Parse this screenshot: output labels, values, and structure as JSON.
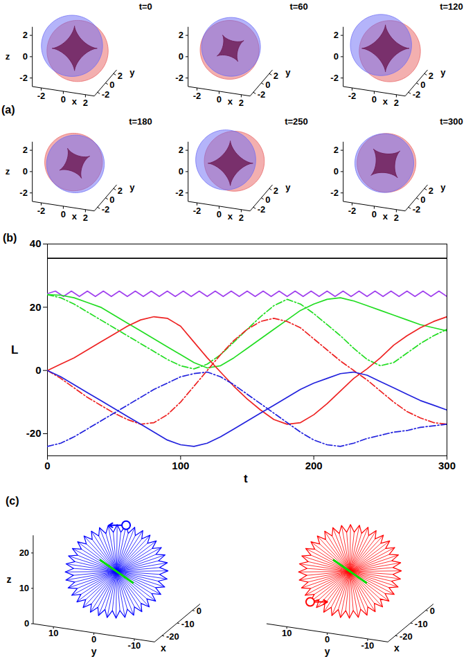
{
  "chart_data": [
    {
      "type": "isosurface",
      "panel": "(a)",
      "xlabel": "x",
      "ylabel": "y",
      "xlim": [
        -2.8,
        2.8
      ],
      "ylim": [
        -2.8,
        2.8
      ],
      "zlim": [
        -2.8,
        2.8
      ],
      "xticks": [
        -2,
        0,
        2
      ],
      "yticks": [
        -2,
        0,
        2
      ],
      "zticks": [
        -2,
        0,
        2
      ],
      "frames": [
        {
          "label": "t=0",
          "zlabel": "z",
          "components": [
            {
              "color": "#e8605f",
              "center": [
                0.35,
                -0.2,
                -0.1
              ],
              "radius": 2.6
            },
            {
              "color": "#6a6af5",
              "center": [
                -0.3,
                0.2,
                0.1
              ],
              "radius": 2.6
            }
          ],
          "core": {
            "color": "#70205a",
            "arm_length": 1.9,
            "angle_deg": 0
          }
        },
        {
          "label": "t=60",
          "components": [
            {
              "color": "#e8605f",
              "center": [
                -0.1,
                0.1,
                -0.2
              ],
              "radius": 2.5
            },
            {
              "color": "#6a6af5",
              "center": [
                0.1,
                -0.1,
                0.2
              ],
              "radius": 2.5
            }
          ],
          "core": {
            "color": "#70205a",
            "arm_length": 1.3,
            "angle_deg": 30
          }
        },
        {
          "label": "t=120",
          "components": [
            {
              "color": "#e8605f",
              "center": [
                0.4,
                0,
                -0.2
              ],
              "radius": 2.6
            },
            {
              "color": "#6a6af5",
              "center": [
                -0.4,
                0,
                0.25
              ],
              "radius": 2.6
            }
          ],
          "core": {
            "color": "#70205a",
            "arm_length": 2.0,
            "angle_deg": 0
          }
        },
        {
          "label": "t=180",
          "zlabel": "z",
          "components": [
            {
              "color": "#e8605f",
              "center": [
                -0.05,
                -0.1,
                0.15
              ],
              "radius": 2.45
            },
            {
              "color": "#6a6af5",
              "center": [
                0.05,
                0.1,
                -0.1
              ],
              "radius": 2.45
            }
          ],
          "core": {
            "color": "#70205a",
            "arm_length": 1.4,
            "angle_deg": 25
          }
        },
        {
          "label": "t=250",
          "components": [
            {
              "color": "#e8605f",
              "center": [
                0.4,
                -0.1,
                0.3
              ],
              "radius": 2.55
            },
            {
              "color": "#6a6af5",
              "center": [
                -0.45,
                0.1,
                0.2
              ],
              "radius": 2.55
            }
          ],
          "core": {
            "color": "#70205a",
            "arm_length": 1.9,
            "angle_deg": 0
          }
        },
        {
          "label": "t=300",
          "components": [
            {
              "color": "#e8605f",
              "center": [
                0.1,
                0,
                0.05
              ],
              "radius": 2.5
            },
            {
              "color": "#6a6af5",
              "center": [
                -0.1,
                0,
                0
              ],
              "radius": 2.5
            }
          ],
          "core": {
            "color": "#70205a",
            "arm_length": 1.6,
            "angle_deg": 40
          }
        }
      ]
    },
    {
      "type": "line",
      "panel": "(b)",
      "xlabel": "t",
      "ylabel": "L",
      "xlim": [
        0,
        300
      ],
      "ylim": [
        -27,
        40
      ],
      "xticks": [
        0,
        100,
        200,
        300
      ],
      "yticks": [
        -20,
        0,
        20,
        40
      ],
      "series": [
        {
          "color": "#000000",
          "line_style": "solid",
          "x": [
            0,
            300
          ],
          "values": [
            35.5,
            35.5
          ]
        },
        {
          "color": "#a040ee",
          "line_style": "solid",
          "x": [
            0,
            6,
            12,
            18,
            24,
            30,
            36,
            42,
            48,
            54,
            60,
            66,
            72,
            78,
            84,
            90,
            96,
            102,
            108,
            114,
            120,
            126,
            132,
            138,
            144,
            150,
            156,
            162,
            168,
            174,
            180,
            186,
            192,
            198,
            204,
            210,
            216,
            222,
            228,
            234,
            240,
            246,
            252,
            258,
            264,
            270,
            276,
            282,
            288,
            294,
            300
          ],
          "values": [
            24.3,
            25.1,
            23.4,
            25.1,
            23.4,
            25.1,
            23.4,
            25.1,
            23.4,
            25.1,
            23.4,
            25.1,
            23.4,
            25.1,
            23.4,
            25.1,
            23.4,
            25.1,
            23.4,
            25.1,
            23.4,
            25.1,
            23.4,
            25.1,
            23.4,
            25.1,
            23.4,
            25.1,
            23.4,
            25.1,
            23.4,
            25.1,
            23.4,
            25.1,
            23.4,
            25.1,
            23.4,
            25.1,
            23.4,
            25.1,
            23.4,
            25.1,
            23.4,
            25.1,
            23.4,
            25.1,
            23.4,
            25.1,
            23.4,
            25.1,
            23.4
          ]
        },
        {
          "color": "#22dd22",
          "line_style": "solid",
          "x": [
            0,
            10,
            20,
            30,
            40,
            50,
            60,
            70,
            80,
            90,
            100,
            110,
            120,
            130,
            140,
            150,
            160,
            170,
            180,
            190,
            200,
            210,
            220,
            230,
            240,
            250,
            260,
            270,
            280,
            290,
            300
          ],
          "values": [
            24,
            23.8,
            23,
            21.5,
            20,
            17.5,
            15,
            12.5,
            10,
            7.5,
            5,
            2.5,
            0.8,
            1.5,
            4,
            7,
            10,
            13,
            16,
            19,
            21,
            22.5,
            23,
            22,
            20.5,
            19,
            17.5,
            16,
            14.5,
            13.5,
            12.5
          ]
        },
        {
          "color": "#22dd22",
          "line_style": "dash-dot",
          "x": [
            0,
            10,
            20,
            30,
            40,
            50,
            60,
            70,
            80,
            90,
            100,
            110,
            120,
            130,
            140,
            150,
            160,
            170,
            180,
            190,
            200,
            210,
            220,
            230,
            240,
            250,
            260,
            270,
            280,
            290,
            300
          ],
          "values": [
            24,
            23,
            21,
            18.5,
            16,
            13.5,
            11,
            8.5,
            6,
            3.5,
            1.5,
            0.5,
            2,
            5,
            9,
            13,
            17,
            20.5,
            22.5,
            21,
            18,
            14.5,
            11,
            7,
            3.5,
            1.5,
            2.5,
            5.5,
            8.5,
            11,
            13
          ]
        },
        {
          "color": "#ee2222",
          "line_style": "solid",
          "x": [
            0,
            10,
            20,
            30,
            40,
            50,
            60,
            70,
            80,
            90,
            100,
            110,
            120,
            130,
            140,
            150,
            160,
            170,
            180,
            190,
            200,
            210,
            220,
            230,
            240,
            250,
            260,
            270,
            280,
            290,
            300
          ],
          "values": [
            0,
            2,
            4,
            6.5,
            9,
            11.5,
            14,
            16,
            17,
            16.5,
            14,
            9,
            4,
            -0.5,
            -5,
            -9,
            -12.5,
            -15.5,
            -17,
            -16.5,
            -14,
            -10.5,
            -6.5,
            -2.5,
            0.5,
            4,
            8,
            11,
            13.5,
            15.5,
            17
          ]
        },
        {
          "color": "#ee2222",
          "line_style": "dash-dot",
          "x": [
            0,
            10,
            20,
            30,
            40,
            50,
            60,
            70,
            80,
            90,
            100,
            110,
            120,
            130,
            140,
            150,
            160,
            170,
            180,
            190,
            200,
            210,
            220,
            230,
            240,
            250,
            260,
            270,
            280,
            290,
            300
          ],
          "values": [
            0,
            -2.5,
            -5.5,
            -8.5,
            -11,
            -13.5,
            -15.5,
            -17,
            -16.5,
            -14,
            -10,
            -5,
            0,
            5,
            9.5,
            13,
            15.5,
            16.5,
            15.5,
            13.5,
            10,
            6.5,
            3,
            0,
            -3,
            -6.5,
            -10,
            -13,
            -15,
            -16.5,
            -17
          ]
        },
        {
          "color": "#2222dd",
          "line_style": "solid",
          "x": [
            0,
            10,
            20,
            30,
            40,
            50,
            60,
            70,
            80,
            90,
            100,
            110,
            120,
            130,
            140,
            150,
            160,
            170,
            180,
            190,
            200,
            210,
            220,
            230,
            240,
            250,
            260,
            270,
            280,
            290,
            300
          ],
          "values": [
            0,
            -2,
            -4.5,
            -7,
            -9.5,
            -12,
            -14.5,
            -17,
            -19.5,
            -22,
            -23.5,
            -24,
            -23,
            -21,
            -18.5,
            -16,
            -13.5,
            -11,
            -8.5,
            -6,
            -4,
            -2.5,
            -1,
            -0.5,
            -1.5,
            -3.5,
            -5.5,
            -7.5,
            -9.5,
            -11,
            -12.5
          ]
        },
        {
          "color": "#2222dd",
          "line_style": "dash-dot",
          "x": [
            0,
            10,
            20,
            30,
            40,
            50,
            60,
            70,
            80,
            90,
            100,
            110,
            120,
            130,
            140,
            150,
            160,
            170,
            180,
            190,
            200,
            210,
            220,
            230,
            240,
            250,
            260,
            270,
            280,
            290,
            300
          ],
          "values": [
            -24,
            -23,
            -21,
            -18.5,
            -16,
            -13.5,
            -11,
            -8.5,
            -6,
            -4,
            -2,
            -1,
            -0.5,
            -2,
            -4.5,
            -7.5,
            -10.5,
            -13.5,
            -16.5,
            -19.5,
            -22,
            -23.5,
            -24,
            -23,
            -21.5,
            -20.5,
            -19.5,
            -19,
            -18,
            -17.5,
            -17
          ]
        }
      ]
    },
    {
      "type": "vector_fan",
      "panel": "(c)",
      "xlabel": "x",
      "ylabel": "y",
      "xlim": [
        -25,
        5
      ],
      "ylim": [
        -15,
        15
      ],
      "zlim": [
        0,
        25
      ],
      "xticks": [
        -20,
        -10,
        0
      ],
      "yticks": [
        -10,
        0,
        10
      ],
      "center": [
        -10,
        0,
        12
      ],
      "spoke_plane": [
        [
          0,
          -1,
          0
        ],
        [
          0.5,
          0,
          0.866
        ]
      ],
      "spoke_angles_deg": [
        0,
        5,
        10,
        15,
        20,
        25,
        30,
        35,
        40,
        45,
        50,
        55,
        60,
        65,
        70,
        75,
        80,
        85,
        90,
        95,
        100,
        105,
        110,
        115,
        120,
        125,
        130,
        135,
        140,
        145,
        150,
        155,
        160,
        165,
        170,
        175,
        180,
        185,
        190,
        195,
        200,
        205,
        210,
        215,
        220,
        225,
        230,
        235,
        240,
        245,
        250,
        255,
        260,
        265,
        270,
        275,
        280,
        285,
        290,
        295,
        300,
        305,
        310,
        315,
        320,
        325,
        330,
        335,
        340,
        345,
        350,
        355
      ],
      "spoke_lengths": [
        12.5,
        10.5,
        12.5,
        10.5,
        12.5,
        10.5,
        12.5,
        10.5,
        12.5,
        10.5,
        12.5,
        10.5,
        12.5,
        10.5,
        12.5,
        10.5,
        12.5,
        10.5,
        12.5,
        10.5,
        12.5,
        10.5,
        12.5,
        10.5,
        12.5,
        10.5,
        12.5,
        10.5,
        12.5,
        10.5,
        12.5,
        10.5,
        12.5,
        10.5,
        12.5,
        10.5,
        12.5,
        10.5,
        12.5,
        10.5,
        12.5,
        10.5,
        12.5,
        10.5,
        12.5,
        10.5,
        12.5,
        10.5,
        12.5,
        10.5,
        12.5,
        10.5,
        12.5,
        10.5,
        12.5,
        10.5,
        12.5,
        10.5,
        12.5,
        10.5,
        12.5,
        10.5,
        12.5,
        10.5,
        12.5,
        10.5,
        12.5,
        10.5,
        12.5,
        10.5,
        12.5,
        10.5
      ],
      "axis_segment": {
        "color": "#00e000",
        "start": [
          -10,
          4,
          14.5
        ],
        "end": [
          -10,
          -4,
          9.5
        ]
      },
      "panels": [
        {
          "color": "#0000ff",
          "zlabel": "z",
          "zticks": [
            0,
            10,
            20
          ],
          "ring": {
            "angle_deg": 90,
            "arrow": "left"
          }
        },
        {
          "color": "#ff0000",
          "ring": {
            "angle_deg": 230,
            "arrow": "right"
          }
        }
      ]
    }
  ]
}
